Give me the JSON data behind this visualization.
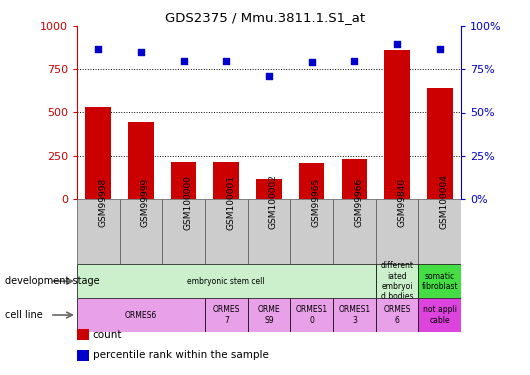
{
  "title": "GDS2375 / Mmu.3811.1.S1_at",
  "samples": [
    "GSM99998",
    "GSM99999",
    "GSM100000",
    "GSM100001",
    "GSM100002",
    "GSM99965",
    "GSM99966",
    "GSM99840",
    "GSM100004"
  ],
  "count_values": [
    530,
    445,
    215,
    215,
    115,
    210,
    230,
    860,
    640
  ],
  "percentile_values": [
    87,
    85,
    80,
    80,
    71,
    79,
    80,
    90,
    87
  ],
  "count_color": "#cc0000",
  "percentile_color": "#0000cc",
  "ylim_left": [
    0,
    1000
  ],
  "ylim_right": [
    0,
    100
  ],
  "yticks_left": [
    0,
    250,
    500,
    750,
    1000
  ],
  "yticks_right": [
    0,
    25,
    50,
    75,
    100
  ],
  "ytick_labels_left": [
    "0",
    "250",
    "500",
    "750",
    "1000"
  ],
  "ytick_labels_right": [
    "0%",
    "25%",
    "50%",
    "75%",
    "100%"
  ],
  "development_stage_label": "development stage",
  "cell_line_label": "cell line",
  "dev_stage_groups": [
    {
      "label": "embryonic stem cell",
      "start": 0,
      "end": 7,
      "color": "#ccf0cc"
    },
    {
      "label": "different\niated\nembryoi\nd bodies",
      "start": 7,
      "end": 8,
      "color": "#ccf0cc"
    },
    {
      "label": "somatic\nfibroblast",
      "start": 8,
      "end": 9,
      "color": "#44dd44"
    }
  ],
  "cell_line_groups": [
    {
      "label": "ORMES6",
      "start": 0,
      "end": 3,
      "color": "#e8a0e8"
    },
    {
      "label": "ORMES\n7",
      "start": 3,
      "end": 4,
      "color": "#e8a0e8"
    },
    {
      "label": "ORME\nS9",
      "start": 4,
      "end": 5,
      "color": "#e8a0e8"
    },
    {
      "label": "ORMES1\n0",
      "start": 5,
      "end": 6,
      "color": "#e8a0e8"
    },
    {
      "label": "ORMES1\n3",
      "start": 6,
      "end": 7,
      "color": "#e8a0e8"
    },
    {
      "label": "ORMES\n6",
      "start": 7,
      "end": 8,
      "color": "#e8a0e8"
    },
    {
      "label": "not appli\ncable",
      "start": 8,
      "end": 9,
      "color": "#dd44dd"
    }
  ],
  "legend_items": [
    {
      "label": "count",
      "color": "#cc0000"
    },
    {
      "label": "percentile rank within the sample",
      "color": "#0000cc"
    }
  ],
  "bar_width": 0.6,
  "dotted_lines": [
    250,
    500,
    750
  ],
  "xlabel_bg_color": "#cccccc",
  "xlabel_border_color": "#555555"
}
